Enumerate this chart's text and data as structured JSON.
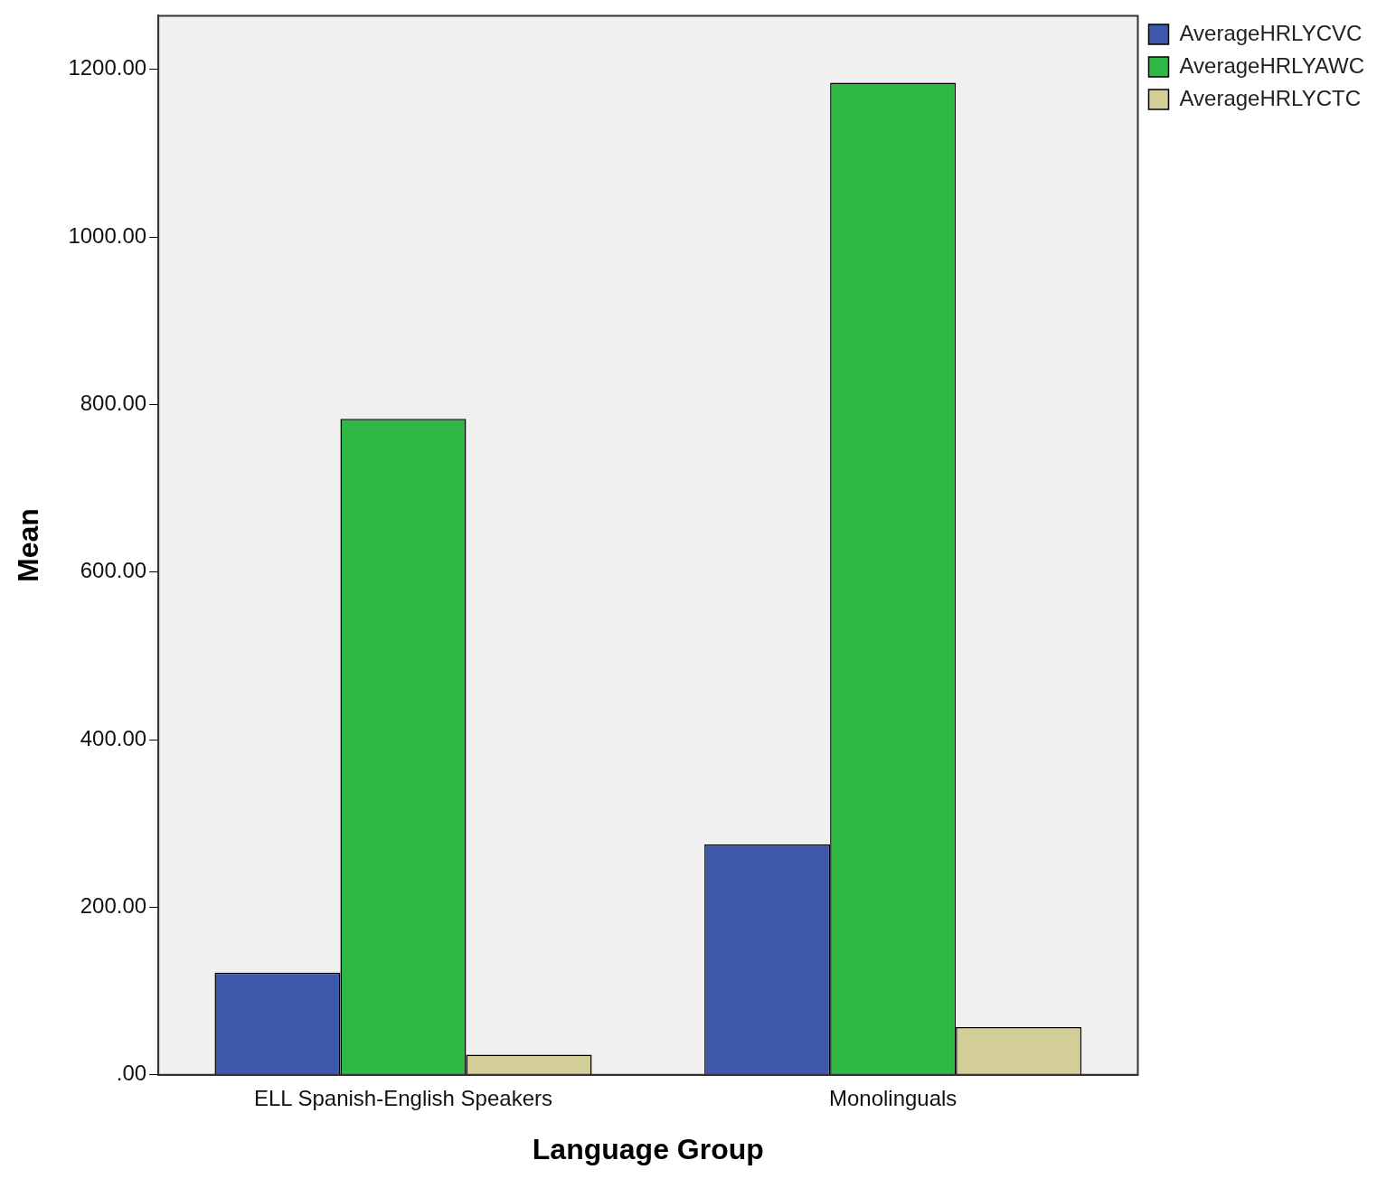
{
  "chart_data": {
    "type": "bar",
    "xlabel": "Language Group",
    "ylabel": "Mean",
    "categories": [
      "ELL Spanish-English Speakers",
      "Monolinguals"
    ],
    "series": [
      {
        "name": "AverageHRLYCVC",
        "color": "#3e58ac",
        "values": [
          122,
          275
        ]
      },
      {
        "name": "AverageHRLYAWC",
        "color": "#30b847",
        "values": [
          783,
          1184
        ]
      },
      {
        "name": "AverageHRLYCTC",
        "color": "#d3ce97",
        "values": [
          24,
          57
        ]
      }
    ],
    "ylim": [
      0,
      1264
    ],
    "yticks": [
      {
        "value": 0,
        "label": ".00"
      },
      {
        "value": 200,
        "label": "200.00"
      },
      {
        "value": 400,
        "label": "400.00"
      },
      {
        "value": 600,
        "label": "600.00"
      },
      {
        "value": 800,
        "label": "800.00"
      },
      {
        "value": 1000,
        "label": "1000.00"
      },
      {
        "value": 1200,
        "label": "1200.00"
      }
    ],
    "grid": false,
    "legend": "top right"
  }
}
